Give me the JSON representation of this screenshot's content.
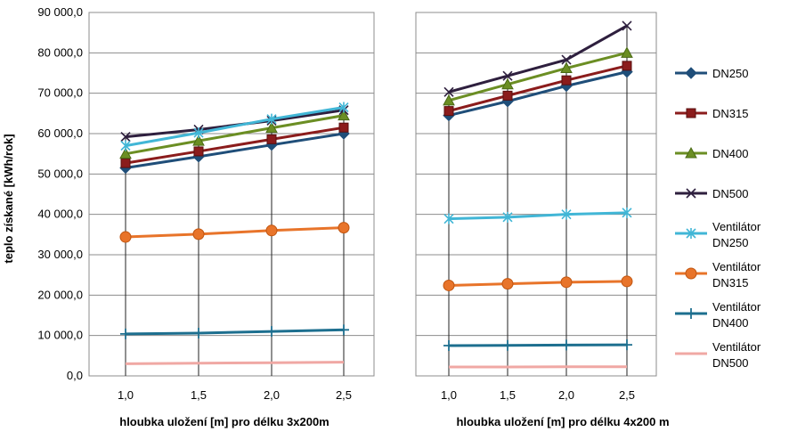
{
  "chart_data": {
    "type": "line",
    "ylabel": "teplo získané [kWh/rok]",
    "ylim": [
      0,
      90000
    ],
    "y_ticks": [
      "0,0",
      "10 000,0",
      "20 000,0",
      "30 000,0",
      "40 000,0",
      "50 000,0",
      "60 000,0",
      "70 000,0",
      "80 000,0",
      "90 000,0"
    ],
    "grid": "horizontal",
    "legend_position": "right",
    "x_categories": [
      "1,0",
      "1,5",
      "2,0",
      "2,5"
    ],
    "series_style": [
      {
        "name": "DN250",
        "color": "#1f4e79",
        "marker": "diamond"
      },
      {
        "name": "DN315",
        "color": "#8b1c1c",
        "marker": "square"
      },
      {
        "name": "DN400",
        "color": "#6b8e23",
        "marker": "triangle"
      },
      {
        "name": "DN500",
        "color": "#2e1f3e",
        "marker": "x"
      },
      {
        "name": "Ventilátor DN250",
        "color": "#41b6d6",
        "marker": "star"
      },
      {
        "name": "Ventilátor DN315",
        "color": "#e8742a",
        "marker": "circle"
      },
      {
        "name": "Ventilátor DN400",
        "color": "#1d6f8f",
        "marker": "plus"
      },
      {
        "name": "Ventilátor DN500",
        "color": "#f0a8a4",
        "marker": "none"
      }
    ],
    "legend": [
      {
        "line1": "DN250",
        "line2": ""
      },
      {
        "line1": "DN315",
        "line2": ""
      },
      {
        "line1": "DN400",
        "line2": ""
      },
      {
        "line1": "DN500",
        "line2": ""
      },
      {
        "line1": "Ventilátor",
        "line2": "DN250"
      },
      {
        "line1": "Ventilátor",
        "line2": "DN315"
      },
      {
        "line1": "Ventilátor",
        "line2": "DN400"
      },
      {
        "line1": "Ventilátor",
        "line2": "DN500"
      }
    ],
    "panels": [
      {
        "xlabel": "hloubka uložení [m] pro délku 3x200m",
        "series": [
          {
            "values": [
              51500,
              54300,
              57200,
              60000
            ]
          },
          {
            "values": [
              52700,
              55600,
              58600,
              61500
            ]
          },
          {
            "values": [
              55000,
              58200,
              61400,
              64500
            ]
          },
          {
            "values": [
              59200,
              61000,
              63200,
              65800
            ]
          },
          {
            "values": [
              57000,
              60200,
              63600,
              66500
            ]
          },
          {
            "values": [
              34400,
              35100,
              36000,
              36700
            ]
          },
          {
            "values": [
              10400,
              10600,
              11000,
              11400
            ]
          },
          {
            "values": [
              3000,
              3150,
              3250,
              3400
            ]
          }
        ]
      },
      {
        "xlabel": "hloubka uložení [m] pro délku 4x200 m",
        "series": [
          {
            "values": [
              64500,
              68000,
              71800,
              75300
            ]
          },
          {
            "values": [
              65600,
              69400,
              73200,
              76800
            ]
          },
          {
            "values": [
              68200,
              72200,
              76200,
              80000
            ]
          },
          {
            "values": [
              70300,
              74300,
              78300,
              86700
            ]
          },
          {
            "values": [
              38900,
              39300,
              40000,
              40400
            ]
          },
          {
            "values": [
              22400,
              22800,
              23200,
              23400
            ]
          },
          {
            "values": [
              7500,
              7550,
              7650,
              7700
            ]
          },
          {
            "values": [
              2200,
              2200,
              2250,
              2250
            ]
          }
        ]
      }
    ]
  }
}
